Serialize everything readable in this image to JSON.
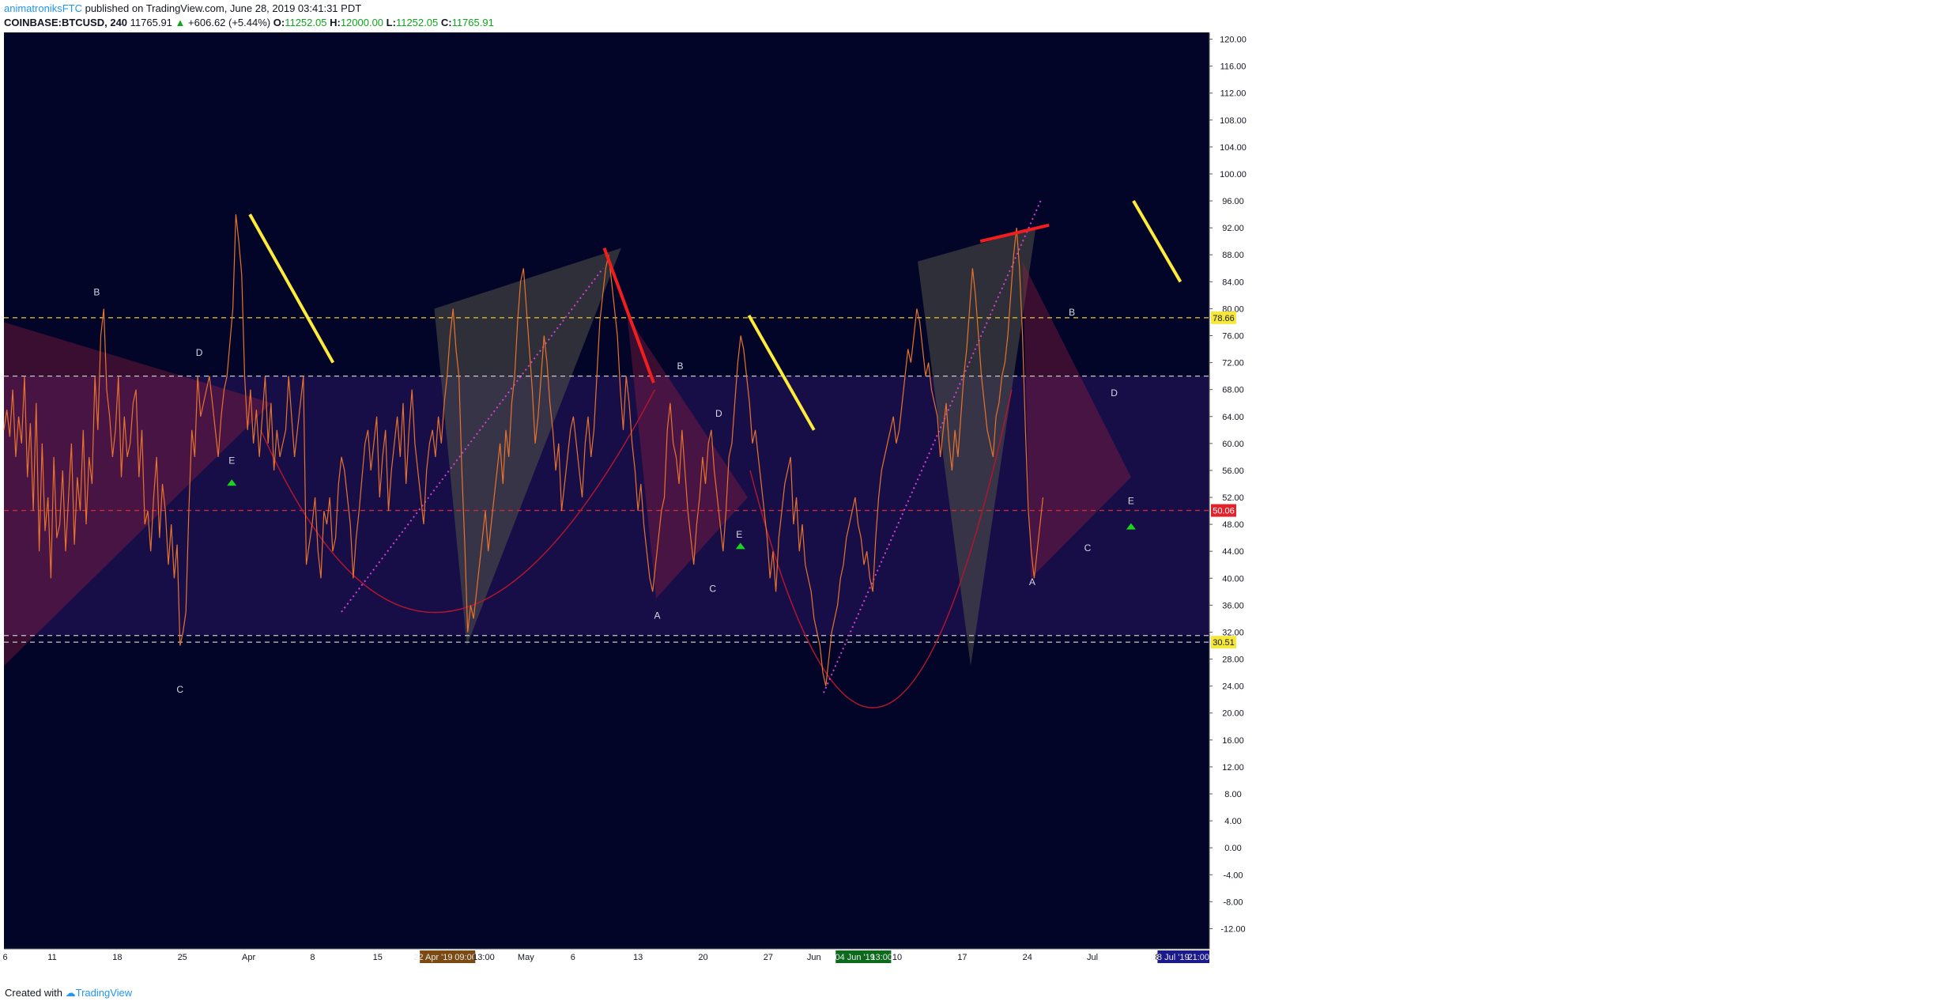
{
  "header": {
    "author": "animatroniksFTC",
    "published": "published on TradingView.com, June 28, 2019 03:41:31 PDT",
    "symbol": "COINBASE:BTCUSD, 240",
    "last": "11765.91",
    "change": "+606.62 (+5.44%)",
    "o_label": "O:",
    "o_value": "11252.05",
    "h_label": "H:",
    "h_value": "12000.00",
    "l_label": "L:",
    "l_value": "11252.05",
    "c_label": "C:",
    "c_value": "11765.91"
  },
  "footer": {
    "created_with": "Created with",
    "brand": "TradingView"
  },
  "colors": {
    "background": "#020528",
    "price_line": "#e8732c",
    "yellow": "#ffeb3b",
    "red": "#f21d1d",
    "magenta_dotted": "#d43fd4",
    "arc": "#b0162e",
    "marker_green": "#1ad61a"
  },
  "chart_data": {
    "type": "line",
    "series": [
      {
        "values": [
          62,
          65,
          61,
          68,
          58,
          64,
          60,
          70,
          55,
          63,
          50,
          66,
          44,
          60,
          47,
          52,
          40,
          58,
          46,
          48,
          56,
          44,
          52,
          60,
          45,
          55,
          50,
          62,
          48,
          58,
          54,
          70,
          62,
          76,
          80,
          68,
          64,
          58,
          62,
          70,
          55,
          64,
          58,
          60,
          66,
          68,
          55,
          62,
          48,
          50,
          44,
          52,
          58,
          46,
          54,
          50,
          42,
          48,
          40,
          45,
          30,
          32,
          35,
          50,
          62,
          58,
          70,
          64,
          66,
          68,
          70,
          66,
          62,
          58,
          64,
          68,
          70,
          75,
          80,
          94,
          90,
          85,
          70,
          62,
          68,
          60,
          65,
          58,
          64,
          70,
          60,
          66,
          56,
          62,
          58,
          60,
          62,
          70,
          64,
          58,
          62,
          66,
          70,
          42,
          45,
          48,
          52,
          44,
          40,
          50,
          48,
          52,
          44,
          46,
          54,
          58,
          56,
          52,
          48,
          40,
          46,
          50,
          55,
          60,
          62,
          56,
          60,
          64,
          52,
          58,
          62,
          50,
          56,
          60,
          64,
          58,
          66,
          54,
          62,
          68,
          60,
          56,
          52,
          48,
          56,
          60,
          62,
          58,
          64,
          60,
          66,
          70,
          76,
          80,
          74,
          70,
          56,
          45,
          32,
          36,
          34,
          38,
          42,
          46,
          50,
          44,
          48,
          52,
          56,
          60,
          54,
          62,
          58,
          66,
          70,
          78,
          84,
          86,
          80,
          74,
          68,
          60,
          64,
          70,
          76,
          72,
          66,
          62,
          56,
          60,
          50,
          54,
          58,
          62,
          64,
          60,
          56,
          52,
          60,
          64,
          58,
          62,
          70,
          78,
          82,
          86,
          88,
          84,
          80,
          76,
          68,
          62,
          70,
          66,
          60,
          56,
          50,
          54,
          48,
          44,
          40,
          38,
          42,
          46,
          50,
          52,
          62,
          66,
          60,
          58,
          54,
          62,
          56,
          50,
          46,
          42,
          48,
          52,
          58,
          54,
          60,
          62,
          56,
          52,
          48,
          44,
          50,
          58,
          60,
          66,
          72,
          76,
          74,
          70,
          66,
          60,
          62,
          58,
          54,
          50,
          46,
          40,
          44,
          38,
          46,
          50,
          54,
          56,
          58,
          48,
          52,
          44,
          48,
          42,
          40,
          38,
          34,
          32,
          30,
          26,
          24,
          28,
          32,
          34,
          36,
          40,
          42,
          46,
          48,
          50,
          52,
          48,
          46,
          42,
          44,
          40,
          38,
          46,
          52,
          56,
          58,
          60,
          62,
          64,
          60,
          62,
          66,
          70,
          74,
          72,
          76,
          80,
          78,
          74,
          70,
          72,
          68,
          66,
          64,
          58,
          62,
          66,
          60,
          56,
          62,
          58,
          64,
          70,
          74,
          80,
          86,
          82,
          76,
          70,
          66,
          62,
          60,
          58,
          64,
          66,
          70,
          72,
          76,
          82,
          88,
          92,
          86,
          76,
          62,
          50,
          44,
          40,
          44,
          48,
          52
        ]
      }
    ],
    "x_tick_labels": [
      "6",
      "11",
      "18",
      "25",
      "Apr",
      "8",
      "15",
      "22 Apr '19",
      "09:00",
      "13:00",
      "May",
      "6",
      "13",
      "20",
      "27",
      "Jun",
      "04 Jun '19",
      "13:00",
      "10",
      "17",
      "24",
      "Jul",
      "8",
      "18 Jul '19",
      "21:00"
    ],
    "y_tick_labels": [
      "120.00",
      "116.00",
      "112.00",
      "108.00",
      "104.00",
      "100.00",
      "96.00",
      "92.00",
      "88.00",
      "84.00",
      "80.00",
      "76.00",
      "72.00",
      "68.00",
      "64.00",
      "60.00",
      "56.00",
      "52.00",
      "48.00",
      "44.00",
      "40.00",
      "36.00",
      "32.00",
      "28.00",
      "24.00",
      "20.00",
      "16.00",
      "12.00",
      "8.00",
      "4.00",
      "0.00",
      "-4.00",
      "-8.00",
      "-12.00"
    ],
    "ylim": [
      -15,
      121
    ],
    "hlines": [
      {
        "value": 78.66,
        "label": "78.66",
        "color": "#d6b92b"
      },
      {
        "value": 70,
        "label": "",
        "color": "#c8c8c8"
      },
      {
        "value": 50.06,
        "label": "50.06",
        "color": "#c92a3a"
      },
      {
        "value": 30.51,
        "label": "30.51",
        "color": "#c8c8c8"
      },
      {
        "value": 31.5,
        "label": "",
        "color": "#c8c8c8"
      }
    ],
    "wave_labels": [
      {
        "text": "B",
        "x": 0.077,
        "y": 82
      },
      {
        "text": "D",
        "x": 0.162,
        "y": 73
      },
      {
        "text": "E",
        "x": 0.189,
        "y": 57
      },
      {
        "text": "C",
        "x": 0.146,
        "y": 23
      },
      {
        "text": "B",
        "x": 0.561,
        "y": 71
      },
      {
        "text": "A",
        "x": 0.542,
        "y": 34
      },
      {
        "text": "D",
        "x": 0.593,
        "y": 64
      },
      {
        "text": "C",
        "x": 0.588,
        "y": 38
      },
      {
        "text": "E",
        "x": 0.61,
        "y": 46
      },
      {
        "text": "B",
        "x": 0.886,
        "y": 79
      },
      {
        "text": "D",
        "x": 0.921,
        "y": 67
      },
      {
        "text": "E",
        "x": 0.935,
        "y": 51
      },
      {
        "text": "C",
        "x": 0.899,
        "y": 44
      },
      {
        "text": "A",
        "x": 0.853,
        "y": 39
      }
    ]
  }
}
